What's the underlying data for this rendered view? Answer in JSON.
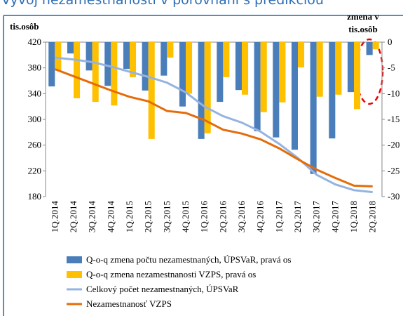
{
  "chart_data": {
    "type": "bar",
    "title": "Vývoj nezamestnanosti v porovnaní s predikciou",
    "y_label": "tis.osôb",
    "y2_label": [
      "zmena v",
      "tis.osôb"
    ],
    "categories": [
      "1Q.2014",
      "2Q.2014",
      "3Q.2014",
      "4Q.2014",
      "1Q.2015",
      "2Q.2015",
      "3Q.2015",
      "4Q.2015",
      "1Q.2016",
      "2Q.2016",
      "3Q.2016",
      "4Q.2016",
      "1Q.2017",
      "2Q.2017",
      "3Q.2017",
      "4Q.2017",
      "1Q.2018",
      "2Q.2018"
    ],
    "ylim": [
      180,
      420
    ],
    "yticks": [
      180,
      220,
      260,
      300,
      340,
      380,
      420
    ],
    "y2lim": [
      -30,
      0
    ],
    "y2ticks": [
      0,
      -5,
      -10,
      -15,
      -20,
      -25,
      -30
    ],
    "series": [
      {
        "name": "Q-o-q zmena počtu nezamestnaných, ÚPSVaR, pravá os",
        "type": "bar",
        "axis": "y2",
        "color": "#4a7ebb",
        "values": [
          -8.6,
          -2.2,
          -5.5,
          -8.5,
          -5.2,
          -9.4,
          -6.5,
          -12.5,
          -18.8,
          -11.6,
          -9.3,
          -17.3,
          -18.5,
          -20.9,
          -25.6,
          -18.7,
          -9.7,
          -2.5
        ]
      },
      {
        "name": "Q-o-q zmena nezamestnanosti VZPS, pravá os",
        "type": "bar",
        "axis": "y2",
        "color": "#ffc000",
        "values": [
          -5.5,
          -10.9,
          -11.6,
          -12.3,
          -6.8,
          -18.8,
          -3.0,
          -10.0,
          -17.7,
          -6.8,
          -10.2,
          -13.6,
          -11.7,
          -4.9,
          -10.6,
          -10.2,
          -13.0,
          -1.4
        ]
      },
      {
        "name": "Celkový počet nezamestnaných, ÚPSVaR",
        "type": "line",
        "color": "#95b3e0",
        "values": [
          396,
          393,
          389,
          382,
          374,
          366,
          357,
          342,
          320,
          305,
          295,
          281,
          262,
          240,
          214,
          199,
          190,
          187
        ]
      },
      {
        "name": "Nezamestnanosť VZPS",
        "type": "line",
        "color": "#e46c0a",
        "values": [
          378,
          367,
          356,
          345,
          335,
          328,
          313,
          310,
          299,
          284,
          278,
          269,
          255,
          238,
          222,
          209,
          197,
          196
        ]
      }
    ]
  }
}
